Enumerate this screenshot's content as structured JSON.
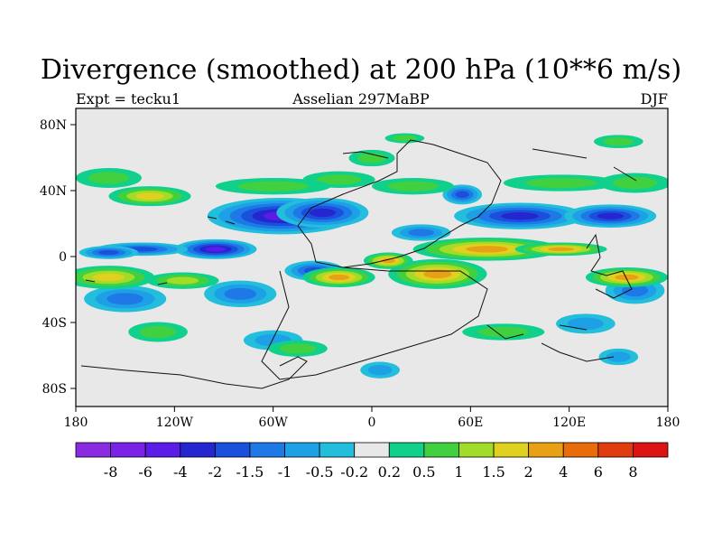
{
  "title": "Divergence (smoothed) at 200 hPa (10**6 m/s)",
  "subtitle_left": "Expt = tecku1",
  "subtitle_center": "Asselian 297MaBP",
  "subtitle_right": "DJF",
  "x_tick_labels": [
    "180",
    "120W",
    "60W",
    "0",
    "60E",
    "120E",
    "180"
  ],
  "y_tick_labels": [
    "80N",
    "40N",
    "0",
    "40S",
    "80S"
  ],
  "colorbar": {
    "labels": [
      "-8",
      "-6",
      "-4",
      "-2",
      "-1.5",
      "-1",
      "-0.5",
      "-0.2",
      "0.2",
      "0.5",
      "1",
      "1.5",
      "2",
      "4",
      "6",
      "8"
    ],
    "colors": [
      "#8a2be2",
      "#7a22e6",
      "#5a1ce6",
      "#2626d0",
      "#1a50dc",
      "#1e78e6",
      "#1ea0e6",
      "#22bedc",
      "#e8e8e8",
      "#10d08c",
      "#40d040",
      "#a0dc28",
      "#e0d020",
      "#e8a014",
      "#e86c0a",
      "#e03c10",
      "#dc1414"
    ]
  },
  "chart_data": {
    "type": "heatmap",
    "title": "Divergence (smoothed) at 200 hPa (10**6 m/s)",
    "variable": "Divergence (smoothed)",
    "level": "200 hPa",
    "units": "10**6 m/s",
    "experiment": "tecku1",
    "period": "Asselian 297MaBP",
    "season": "DJF",
    "xlim": [
      -180,
      180
    ],
    "ylim": [
      -90,
      90
    ],
    "contour_levels": [
      -8,
      -6,
      -4,
      -2,
      -1.5,
      -1,
      -0.5,
      -0.2,
      0.2,
      0.5,
      1,
      1.5,
      2,
      4,
      6,
      8
    ],
    "blobs": [
      {
        "lon": -55,
        "lat": 25,
        "value": -4.0,
        "rlon": 45,
        "rlat": 11
      },
      {
        "lon": -30,
        "lat": 27,
        "value": -3.0,
        "rlon": 28,
        "rlat": 9
      },
      {
        "lon": -95,
        "lat": 5,
        "value": -4.0,
        "rlon": 25,
        "rlat": 6
      },
      {
        "lon": -140,
        "lat": 5,
        "value": -1.8,
        "rlon": 28,
        "rlat": 4
      },
      {
        "lon": -160,
        "lat": 3,
        "value": -1.5,
        "rlon": 18,
        "rlat": 4
      },
      {
        "lon": -80,
        "lat": -22,
        "value": -1.4,
        "rlon": 22,
        "rlat": 8
      },
      {
        "lon": -150,
        "lat": -25,
        "value": -1.0,
        "rlon": 25,
        "rlat": 8
      },
      {
        "lon": -35,
        "lat": -8,
        "value": -1.6,
        "rlon": 18,
        "rlat": 6
      },
      {
        "lon": 90,
        "lat": 25,
        "value": -2.4,
        "rlon": 40,
        "rlat": 8
      },
      {
        "lon": 145,
        "lat": 25,
        "value": -2.0,
        "rlon": 28,
        "rlat": 7
      },
      {
        "lon": 55,
        "lat": 38,
        "value": -1.6,
        "rlon": 12,
        "rlat": 6
      },
      {
        "lon": 30,
        "lat": 15,
        "value": -1.0,
        "rlon": 18,
        "rlat": 5
      },
      {
        "lon": 160,
        "lat": -20,
        "value": -1.0,
        "rlon": 18,
        "rlat": 8
      },
      {
        "lon": 130,
        "lat": -40,
        "value": -0.8,
        "rlon": 18,
        "rlat": 6
      },
      {
        "lon": 150,
        "lat": -60,
        "value": -0.8,
        "rlon": 12,
        "rlat": 5
      },
      {
        "lon": 5,
        "lat": -68,
        "value": -0.8,
        "rlon": 12,
        "rlat": 5
      },
      {
        "lon": -60,
        "lat": -50,
        "value": -0.8,
        "rlon": 18,
        "rlat": 6
      },
      {
        "lon": 70,
        "lat": 5,
        "value": 3.5,
        "rlon": 45,
        "rlat": 7
      },
      {
        "lon": 40,
        "lat": -10,
        "value": 3.0,
        "rlon": 30,
        "rlat": 9
      },
      {
        "lon": -20,
        "lat": -12,
        "value": 2.6,
        "rlon": 22,
        "rlat": 6
      },
      {
        "lon": 10,
        "lat": -2,
        "value": 2.0,
        "rlon": 15,
        "rlat": 5
      },
      {
        "lon": 115,
        "lat": 5,
        "value": 2.0,
        "rlon": 28,
        "rlat": 4
      },
      {
        "lon": 155,
        "lat": -12,
        "value": 2.2,
        "rlon": 25,
        "rlat": 6
      },
      {
        "lon": -160,
        "lat": -12,
        "value": 1.8,
        "rlon": 28,
        "rlat": 7
      },
      {
        "lon": -115,
        "lat": -14,
        "value": 1.0,
        "rlon": 22,
        "rlat": 5
      },
      {
        "lon": -135,
        "lat": 37,
        "value": 1.5,
        "rlon": 25,
        "rlat": 6
      },
      {
        "lon": -160,
        "lat": 48,
        "value": 0.9,
        "rlon": 20,
        "rlat": 6
      },
      {
        "lon": -20,
        "lat": 47,
        "value": 0.7,
        "rlon": 22,
        "rlat": 5
      },
      {
        "lon": 0,
        "lat": 60,
        "value": 0.8,
        "rlon": 14,
        "rlat": 5
      },
      {
        "lon": 115,
        "lat": 45,
        "value": 0.9,
        "rlon": 35,
        "rlat": 5
      },
      {
        "lon": 160,
        "lat": 45,
        "value": 0.8,
        "rlon": 22,
        "rlat": 6
      },
      {
        "lon": 25,
        "lat": 43,
        "value": 0.6,
        "rlon": 25,
        "rlat": 5
      },
      {
        "lon": -60,
        "lat": 43,
        "value": 0.5,
        "rlon": 35,
        "rlat": 5
      },
      {
        "lon": -130,
        "lat": -45,
        "value": 0.8,
        "rlon": 18,
        "rlat": 6
      },
      {
        "lon": 80,
        "lat": -45,
        "value": 0.8,
        "rlon": 25,
        "rlat": 5
      },
      {
        "lon": 150,
        "lat": 70,
        "value": 0.8,
        "rlon": 15,
        "rlat": 4
      },
      {
        "lon": 20,
        "lat": 72,
        "value": 0.6,
        "rlon": 12,
        "rlat": 3
      },
      {
        "lon": -45,
        "lat": -55,
        "value": 0.6,
        "rlon": 18,
        "rlat": 5
      }
    ]
  }
}
